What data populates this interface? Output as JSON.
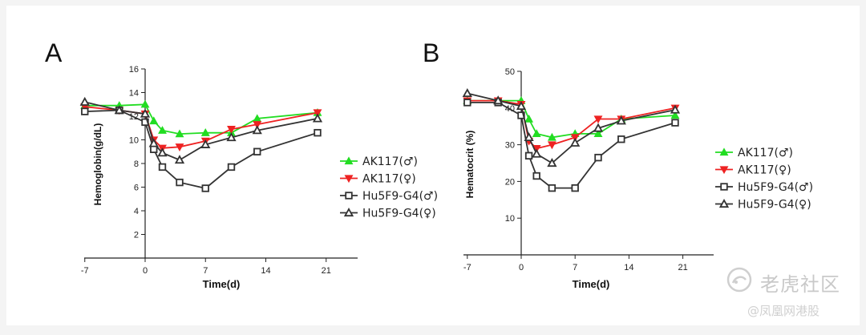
{
  "chart_data": [
    {
      "panel_label": "A",
      "type": "line",
      "title": "",
      "xlabel": "Time(d)",
      "ylabel": "Hemoglobin(g/dL)",
      "xlim": [
        -7,
        26
      ],
      "ylim": [
        0,
        16
      ],
      "xticks": [
        "-7",
        "0",
        "7",
        "14",
        "21"
      ],
      "yticks": [
        "2",
        "4",
        "6",
        "8",
        "10",
        "12",
        "14",
        "16"
      ],
      "series": [
        {
          "name": "AK117(♂)",
          "color": "#22dd22",
          "marker": "triangle-up-filled",
          "x": [
            -7,
            -3,
            0,
            1,
            2,
            4,
            7,
            10,
            13,
            20
          ],
          "y": [
            12.9,
            12.9,
            13.0,
            11.6,
            10.8,
            10.5,
            10.6,
            10.6,
            11.8,
            12.3
          ]
        },
        {
          "name": "AK117(♀)",
          "color": "#ee2222",
          "marker": "triangle-down-filled",
          "x": [
            -7,
            -3,
            0,
            1,
            2,
            4,
            7,
            10,
            13,
            20
          ],
          "y": [
            12.8,
            12.5,
            12.2,
            10.0,
            9.3,
            9.4,
            9.9,
            10.9,
            11.3,
            12.3
          ]
        },
        {
          "name": "Hu5F9-G4(♂)",
          "color": "#333333",
          "marker": "square-open",
          "x": [
            -7,
            -3,
            0,
            1,
            2,
            4,
            7,
            10,
            13,
            20
          ],
          "y": [
            12.4,
            12.5,
            11.5,
            9.2,
            7.7,
            6.4,
            5.9,
            7.7,
            9.0,
            10.6
          ]
        },
        {
          "name": "Hu5F9-G4(♀)",
          "color": "#333333",
          "marker": "triangle-up-open",
          "x": [
            -7,
            -3,
            0,
            1,
            2,
            4,
            7,
            10,
            13,
            20
          ],
          "y": [
            13.2,
            12.5,
            12.2,
            9.7,
            8.9,
            8.3,
            9.6,
            10.2,
            10.8,
            11.8
          ]
        }
      ]
    },
    {
      "panel_label": "B",
      "type": "line",
      "title": "",
      "xlabel": "Time(d)",
      "ylabel": "Hematocrit (%)",
      "xlim": [
        -7,
        26
      ],
      "ylim": [
        0,
        50
      ],
      "xticks": [
        "-7",
        "0",
        "7",
        "14",
        "21"
      ],
      "yticks": [
        "10",
        "20",
        "30",
        "40",
        "50"
      ],
      "series": [
        {
          "name": "AK117(♂)",
          "color": "#22dd22",
          "marker": "triangle-up-filled",
          "x": [
            -7,
            -3,
            0,
            1,
            2,
            4,
            7,
            10,
            13,
            20
          ],
          "y": [
            42,
            42,
            42,
            37,
            33,
            32,
            33,
            33,
            37,
            38
          ]
        },
        {
          "name": "AK117(♀)",
          "color": "#ee2222",
          "marker": "triangle-down-filled",
          "x": [
            -7,
            -3,
            0,
            1,
            2,
            4,
            7,
            10,
            13,
            20
          ],
          "y": [
            42,
            42,
            41,
            31,
            29,
            30,
            32,
            37,
            37,
            40
          ]
        },
        {
          "name": "Hu5F9-G4(♂)",
          "color": "#333333",
          "marker": "square-open",
          "x": [
            -7,
            -3,
            0,
            1,
            2,
            4,
            7,
            10,
            13,
            20
          ],
          "y": [
            41.5,
            41.5,
            38,
            27,
            21.5,
            18.2,
            18.2,
            26.5,
            31.5,
            36
          ]
        },
        {
          "name": "Hu5F9-G4(♀)",
          "color": "#333333",
          "marker": "triangle-up-open",
          "x": [
            -7,
            -3,
            0,
            1,
            2,
            4,
            7,
            10,
            13,
            20
          ],
          "y": [
            44,
            42,
            40.5,
            32,
            27.5,
            25,
            30.5,
            34.5,
            36.5,
            39.5
          ]
        }
      ]
    }
  ],
  "watermark": {
    "main": "老虎社区",
    "sub": "@凤凰网港股"
  }
}
